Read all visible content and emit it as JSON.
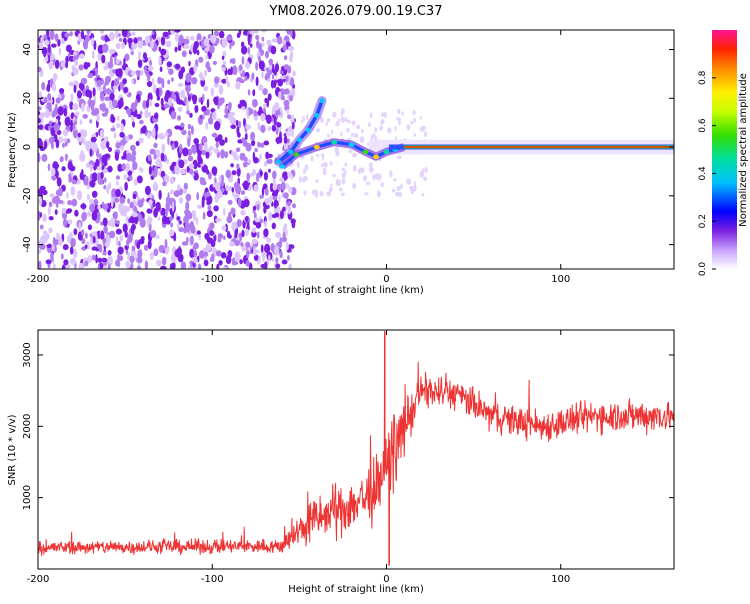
{
  "title": "YM08.2026.079.00.19.C37",
  "colors": {
    "snr_line": "#ee3333",
    "frame": "#000000",
    "speckle": "#7a1fe0",
    "core_line": "#44cc22"
  },
  "chart_data": [
    {
      "type": "heatmap",
      "xlabel": "Height of straight line (km)",
      "ylabel": "Frequency (Hz)",
      "xlim": [
        -200,
        165
      ],
      "ylim": [
        -50,
        48
      ],
      "xticks": [
        -200,
        -100,
        0,
        100
      ],
      "yticks": [
        40,
        20,
        0,
        -20,
        -40
      ],
      "colorbar": {
        "label": "Normalized spectral amplitude",
        "range": [
          0,
          1
        ],
        "ticks": [
          "0.0",
          "0.2",
          "0.4",
          "0.6",
          "0.8"
        ],
        "tick_values": [
          0,
          0.2,
          0.4,
          0.6,
          0.8
        ]
      },
      "features": {
        "noise_region_x": [
          -200,
          -57
        ],
        "main_ridge_start_x": 10,
        "main_ridge_freq": 0,
        "main_ridge_amplitude": 0.9,
        "branch_points": [
          {
            "x": -62,
            "y": -6
          },
          {
            "x": -55,
            "y": -2
          },
          {
            "x": -50,
            "y": 3
          },
          {
            "x": -45,
            "y": 7
          },
          {
            "x": -40,
            "y": 13
          },
          {
            "x": -37,
            "y": 19
          }
        ],
        "wavy_points": [
          {
            "x": -60,
            "y": -8
          },
          {
            "x": -52,
            "y": -3
          },
          {
            "x": -40,
            "y": 0
          },
          {
            "x": -30,
            "y": 2
          },
          {
            "x": -20,
            "y": 1
          },
          {
            "x": -12,
            "y": -2
          },
          {
            "x": -6,
            "y": -4
          },
          {
            "x": 0,
            "y": -2
          },
          {
            "x": 5,
            "y": -1
          },
          {
            "x": 10,
            "y": 0
          }
        ]
      }
    },
    {
      "type": "line",
      "xlabel": "Height of straight line (km)",
      "ylabel": "SNR (10 * v/v)",
      "xlim": [
        -200,
        165
      ],
      "ylim": [
        0,
        3350
      ],
      "xticks": [
        -200,
        -100,
        0,
        100
      ],
      "yticks": [
        3000,
        2000,
        1000
      ],
      "envelope": [
        {
          "x": -200,
          "mean": 300,
          "amp": 130
        },
        {
          "x": -60,
          "mean": 320,
          "amp": 150
        },
        {
          "x": -45,
          "mean": 650,
          "amp": 450
        },
        {
          "x": -20,
          "mean": 900,
          "amp": 550
        },
        {
          "x": -5,
          "mean": 1100,
          "amp": 700
        },
        {
          "x": 5,
          "mean": 1700,
          "amp": 700
        },
        {
          "x": 20,
          "mean": 2500,
          "amp": 350
        },
        {
          "x": 40,
          "mean": 2450,
          "amp": 320
        },
        {
          "x": 60,
          "mean": 2150,
          "amp": 320
        },
        {
          "x": 90,
          "mean": 2000,
          "amp": 320
        },
        {
          "x": 120,
          "mean": 2150,
          "amp": 330
        },
        {
          "x": 165,
          "mean": 2150,
          "amp": 330
        }
      ],
      "spikes": [
        {
          "x": -1,
          "y": 3330
        },
        {
          "x": 1.5,
          "y": 50
        }
      ]
    }
  ]
}
